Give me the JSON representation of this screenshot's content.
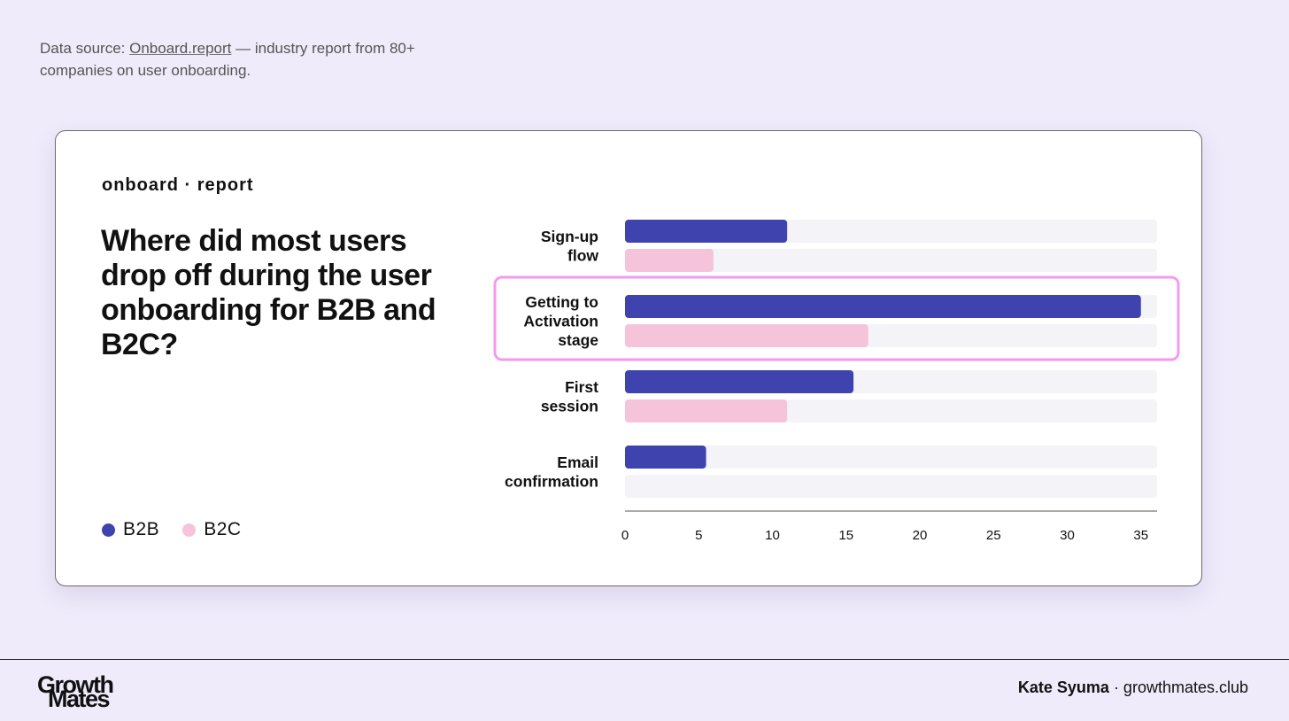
{
  "source": {
    "prefix": "Data source: ",
    "link": "Onboard.report",
    "suffix": " — industry report from 80+ companies on user onboarding."
  },
  "card": {
    "brand": "onboard · report",
    "headline": "Where did most users drop off during the user onboarding for B2B and B2C?"
  },
  "legend": [
    {
      "label": "B2B",
      "color": "#3f43ae"
    },
    {
      "label": "B2C",
      "color": "#f5c4da"
    }
  ],
  "chart_data": {
    "type": "bar",
    "orientation": "horizontal",
    "categories": [
      [
        "Sign-up",
        "flow"
      ],
      [
        "Getting to",
        "Activation",
        "stage"
      ],
      [
        "First",
        "session"
      ],
      [
        "Email",
        "confirmation"
      ]
    ],
    "series": [
      {
        "name": "B2B",
        "values": [
          11,
          35,
          15.5,
          5.5
        ],
        "color": "#3f43ae"
      },
      {
        "name": "B2C",
        "values": [
          6,
          16.5,
          11,
          0
        ],
        "color": "#f5c4da"
      }
    ],
    "xlim": [
      0,
      36
    ],
    "xticks": [
      0,
      5,
      10,
      15,
      20,
      25,
      30,
      35
    ],
    "highlight_category": 1,
    "highlight_color": "#f39af0",
    "track_color": "#f3f3f8"
  },
  "footer": {
    "logo_top": "Growth",
    "logo_bottom": "Mates",
    "author": "Kate Syuma",
    "site": " · growthmates.club"
  }
}
